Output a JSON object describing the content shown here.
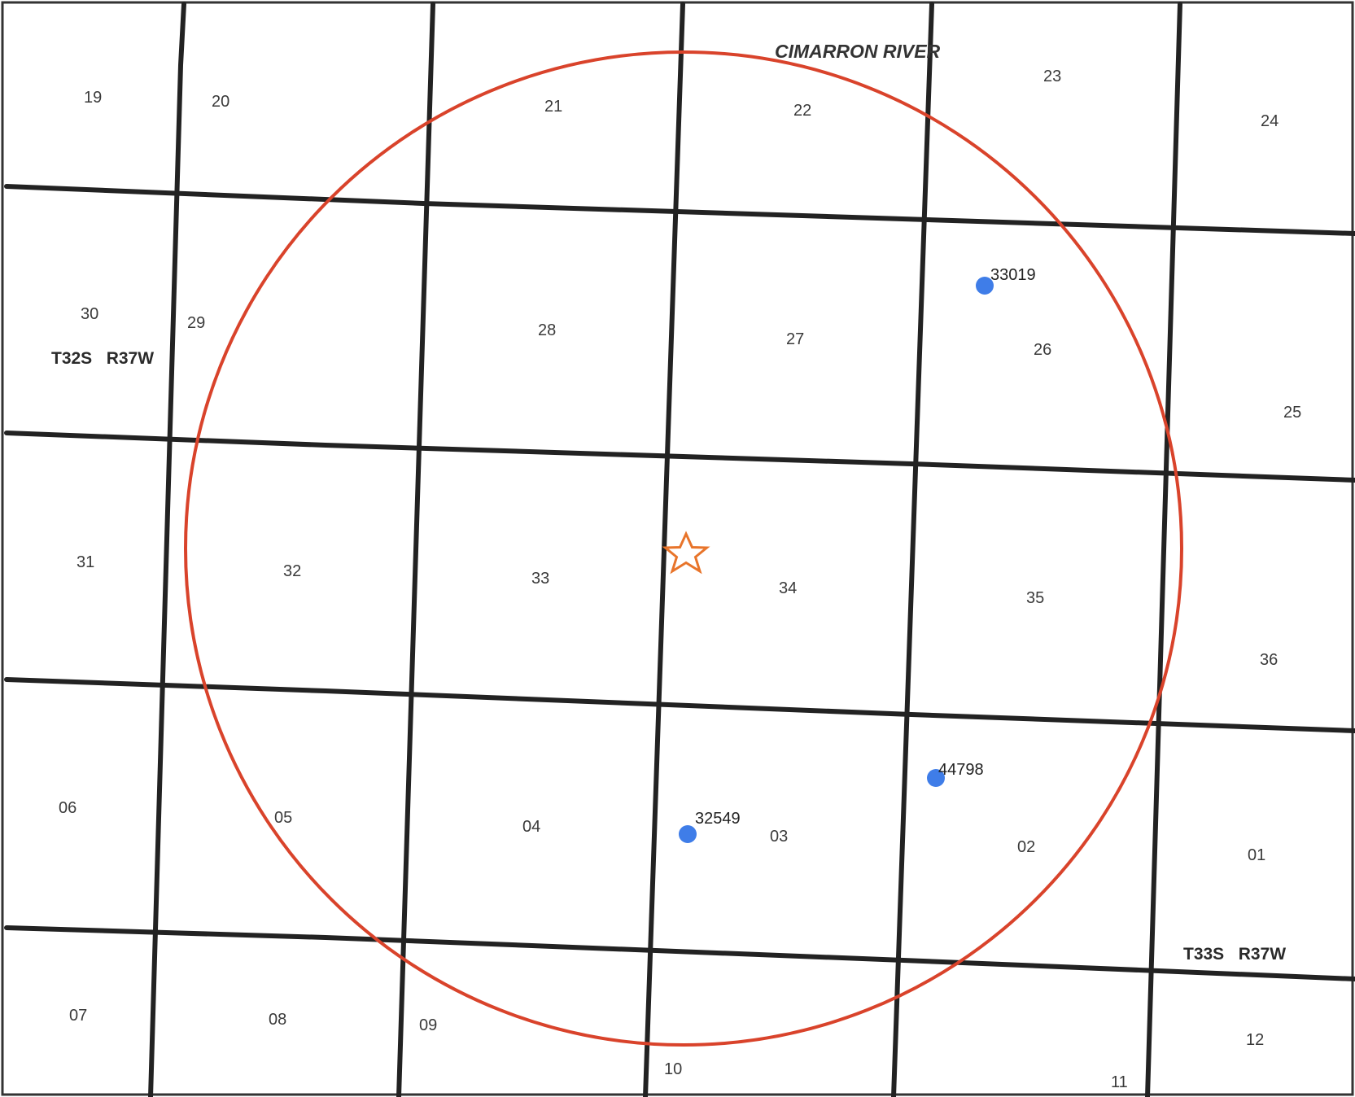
{
  "map": {
    "river_label": "CIMARRON RIVER",
    "township_labels": {
      "north": "T32S   R37W",
      "south": "T33S   R37W"
    },
    "sections": {
      "s19": "19",
      "s20": "20",
      "s21": "21",
      "s22": "22",
      "s23": "23",
      "s24": "24",
      "s30": "30",
      "s29": "29",
      "s28": "28",
      "s27": "27",
      "s26": "26",
      "s25": "25",
      "s31": "31",
      "s32": "32",
      "s33": "33",
      "s34": "34",
      "s35": "35",
      "s36": "36",
      "s06": "06",
      "s05": "05",
      "s04": "04",
      "s03": "03",
      "s02": "02",
      "s01": "01",
      "s07": "07",
      "s08": "08",
      "s09": "09",
      "s10": "10",
      "s11": "11",
      "s12": "12"
    },
    "wells": [
      {
        "id": "33019"
      },
      {
        "id": "44798"
      },
      {
        "id": "32549"
      }
    ],
    "colors": {
      "grid": "#222222",
      "radius_circle": "#d9432b",
      "site_star": "#e8742a",
      "well_dot": "#3f7de8"
    },
    "symbols": {
      "site": "star-icon",
      "well": "dot-icon"
    }
  }
}
